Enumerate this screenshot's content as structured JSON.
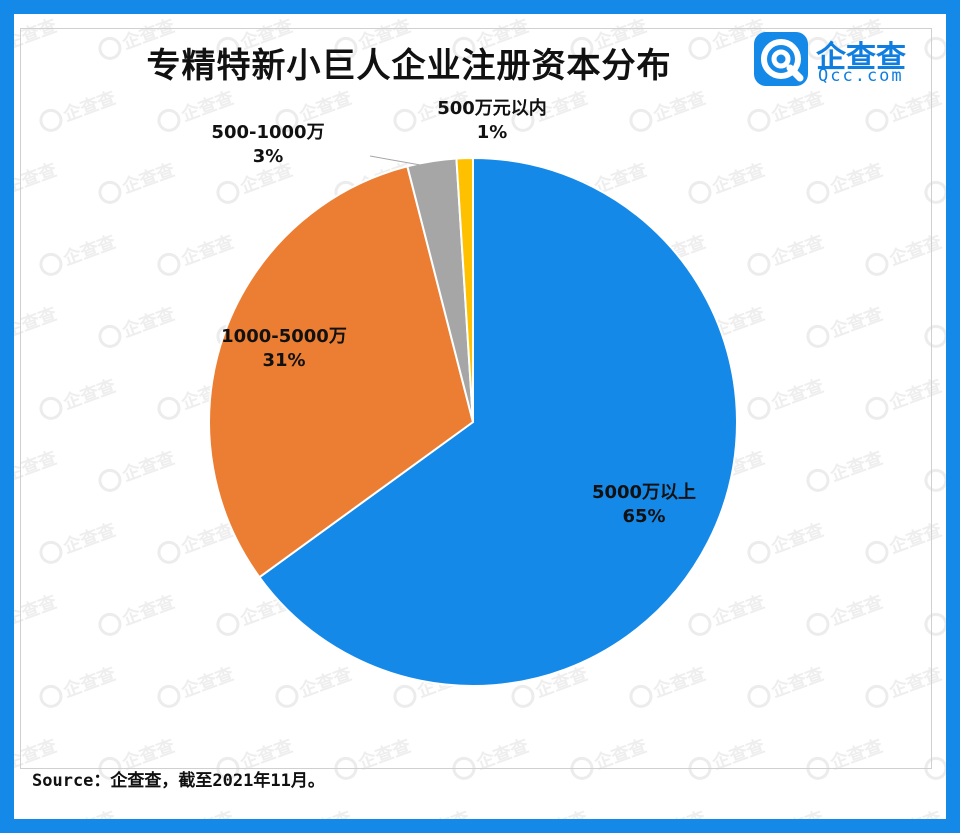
{
  "colors": {
    "frame": "#1589e8",
    "slice_0": "#1589e8",
    "slice_1": "#ec7e33",
    "slice_2": "#a6a6a6",
    "slice_3": "#ffc000"
  },
  "header": {
    "title": "专精特新小巨人企业注册资本分布"
  },
  "logo": {
    "cn": "企查查",
    "en": "Qcc.com",
    "icon": "qcc-logo-icon"
  },
  "footer": {
    "source": "Source：企查查，截至2021年11月。"
  },
  "watermark_text": "企查查",
  "chart_data": {
    "type": "pie",
    "title": "专精特新小巨人企业注册资本分布",
    "slices": [
      {
        "label": "5000万以上",
        "value": 65,
        "value_label": "65%"
      },
      {
        "label": "1000-5000万",
        "value": 31,
        "value_label": "31%"
      },
      {
        "label": "500-1000万",
        "value": 3,
        "value_label": "3%"
      },
      {
        "label": "500万元以内",
        "value": 1,
        "value_label": "1%"
      }
    ],
    "start": "12 o'clock",
    "direction": "clockwise",
    "legend": "none",
    "labels": "slice name and percent"
  }
}
